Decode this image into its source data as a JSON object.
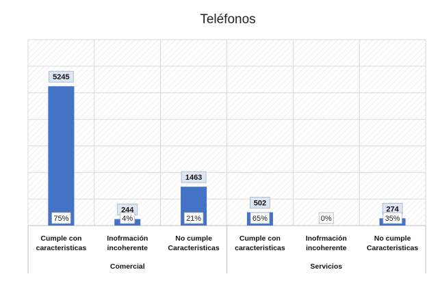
{
  "chart_data": {
    "type": "bar",
    "title": "Teléfonos",
    "xlabel": "",
    "ylabel": "",
    "ylim": [
      0,
      7000
    ],
    "grid": true,
    "legend": "none",
    "colors": {
      "bar": "#4472C4",
      "grid": "#d9d9d9",
      "hatch": "#ececec"
    },
    "groups": [
      {
        "name": "Comercial",
        "categories": [
          "Cumple con caracteristicas",
          "Inofrmación incoherente",
          "No cumple Caracteristicas"
        ],
        "category_lines": [
          [
            "Cumple con",
            "caracteristicas"
          ],
          [
            "Inofrmación",
            "incoherente"
          ],
          [
            "No cumple",
            "Caracteristicas"
          ]
        ],
        "values": [
          5245,
          244,
          1463
        ],
        "value_labels": [
          "5245",
          "244",
          "1463"
        ],
        "percent_labels": [
          "75%",
          "4%",
          "21%"
        ]
      },
      {
        "name": "Servicios",
        "categories": [
          "Cumple con caracteristicas",
          "Inofrmación incoherente",
          "No cumple Caracteristicas"
        ],
        "category_lines": [
          [
            "Cumple con",
            "caracteristicas"
          ],
          [
            "Inofrmación",
            "incoherente"
          ],
          [
            "No cumple",
            "Caracteristicas"
          ]
        ],
        "values": [
          502,
          0,
          274
        ],
        "value_labels": [
          "502",
          "",
          "274"
        ],
        "percent_labels": [
          "65%",
          "0%",
          "35%"
        ]
      }
    ]
  }
}
